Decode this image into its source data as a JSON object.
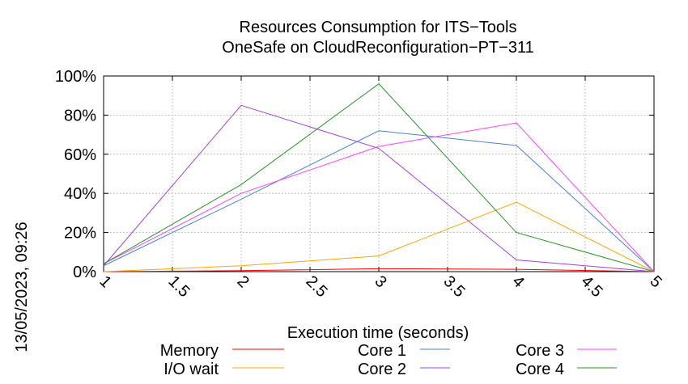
{
  "chart_data": {
    "type": "line",
    "title": "Resources Consumption for ITS−Tools",
    "subtitle": "OneSafe on CloudReconfiguration−PT−311",
    "xlabel": "Execution time (seconds)",
    "ylabel": "",
    "timestamp": "13/05/2023, 09:26",
    "xlim": [
      1,
      5
    ],
    "ylim": [
      0,
      100
    ],
    "x_ticks": [
      1,
      1.5,
      2,
      2.5,
      3,
      3.5,
      4,
      4.5,
      5
    ],
    "x_tick_labels": [
      "1",
      "1.5",
      "2",
      "2.5",
      "3",
      "3.5",
      "4",
      "4.5",
      "5"
    ],
    "y_ticks": [
      0,
      20,
      40,
      60,
      80,
      100
    ],
    "y_tick_labels": [
      "0%",
      "20%",
      "40%",
      "60%",
      "80%",
      "100%"
    ],
    "grid": true,
    "legend_position": "bottom",
    "x": [
      1,
      2,
      3,
      4,
      5
    ],
    "series": [
      {
        "name": "Memory",
        "color": "#ff0000",
        "values": [
          0,
          0.5,
          1.5,
          1.2,
          0
        ]
      },
      {
        "name": "I/O wait",
        "color": "#ffa500",
        "values": [
          0,
          3,
          8,
          35.5,
          0
        ]
      },
      {
        "name": "Core 1",
        "color": "#4682e0",
        "values": [
          3,
          37,
          72,
          64.5,
          0
        ]
      },
      {
        "name": "Core 2",
        "color": "#a040f0",
        "values": [
          3,
          85,
          63,
          6,
          0
        ]
      },
      {
        "name": "Core 3",
        "color": "#ff40ff",
        "values": [
          4,
          40,
          64,
          76,
          0
        ]
      },
      {
        "name": "Core 4",
        "color": "#229922",
        "values": [
          4,
          44.5,
          96,
          20,
          0
        ]
      }
    ]
  }
}
